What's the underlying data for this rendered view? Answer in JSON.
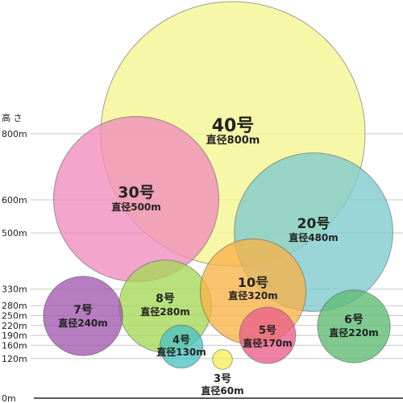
{
  "axis": {
    "title": "高 さ",
    "ticks": [
      {
        "value": 800,
        "label": "800m"
      },
      {
        "value": 600,
        "label": "600m"
      },
      {
        "value": 500,
        "label": "500m"
      },
      {
        "value": 330,
        "label": "330m"
      },
      {
        "value": 280,
        "label": "280m"
      },
      {
        "value": 250,
        "label": "250m"
      },
      {
        "value": 220,
        "label": "220m"
      },
      {
        "value": 190,
        "label": "190m"
      },
      {
        "value": 160,
        "label": "160m"
      },
      {
        "value": 120,
        "label": "120m"
      },
      {
        "value": 0,
        "label": "0m"
      }
    ]
  },
  "shells": [
    {
      "id": "40",
      "name": "40号",
      "diameter_label": "直径800m",
      "diameter_m": 800,
      "color": "#f5f590"
    },
    {
      "id": "20",
      "name": "20号",
      "diameter_label": "直径480m",
      "diameter_m": 480,
      "color": "#7ecbce"
    },
    {
      "id": "30",
      "name": "30号",
      "diameter_label": "直径500m",
      "diameter_m": 500,
      "color": "#f08cbc"
    },
    {
      "id": "8",
      "name": "8号",
      "diameter_label": "直径280m",
      "diameter_m": 280,
      "color": "#a5d856"
    },
    {
      "id": "10",
      "name": "10号",
      "diameter_label": "直径320m",
      "diameter_m": 320,
      "color": "#f8b248"
    },
    {
      "id": "7",
      "name": "7号",
      "diameter_label": "直径240m",
      "diameter_m": 240,
      "color": "#a25aae"
    },
    {
      "id": "6",
      "name": "6号",
      "diameter_label": "直径220m",
      "diameter_m": 220,
      "color": "#5cbb72"
    },
    {
      "id": "5",
      "name": "5号",
      "diameter_label": "直径170m",
      "diameter_m": 170,
      "color": "#ea5f8a"
    },
    {
      "id": "4",
      "name": "4号",
      "diameter_label": "直径130m",
      "diameter_m": 130,
      "color": "#4dc2c2"
    },
    {
      "id": "3",
      "name": "3号",
      "diameter_label": "直径60m",
      "diameter_m": 60,
      "color": "#f8ee5a"
    }
  ]
}
